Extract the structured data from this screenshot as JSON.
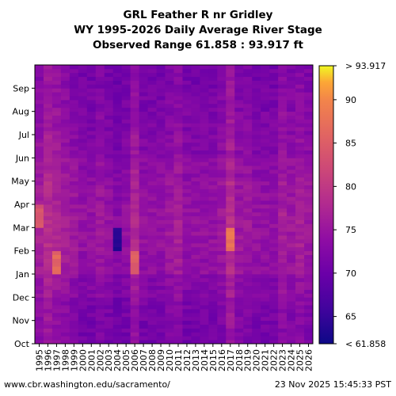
{
  "chart_data": {
    "type": "heatmap",
    "title": "GRL Feather R nr Gridley",
    "subtitle": "WY 1995-2026 Daily Average River Stage",
    "range_label": "Observed Range 61.858 : 93.917 ft",
    "x": [
      "1995",
      "1996",
      "1997",
      "1998",
      "1999",
      "2000",
      "2001",
      "2002",
      "2003",
      "2004",
      "2005",
      "2006",
      "2007",
      "2008",
      "2009",
      "2010",
      "2011",
      "2012",
      "2013",
      "2014",
      "2015",
      "2016",
      "2017",
      "2018",
      "2019",
      "2020",
      "2021",
      "2022",
      "2023",
      "2024",
      "2025",
      "2026"
    ],
    "y_ticks": [
      "Oct",
      "Nov",
      "Dec",
      "Jan",
      "Feb",
      "Mar",
      "Apr",
      "May",
      "Jun",
      "Jul",
      "Aug",
      "Sep"
    ],
    "colorbar_ticks": [
      "65",
      "70",
      "75",
      "80",
      "85",
      "90"
    ],
    "colorbar_top": "> 93.917",
    "colorbar_bottom": "< 61.858",
    "vmin": 61.858,
    "vmax": 93.917,
    "colormap": "plasma",
    "typical_stage_by_year": [
      74,
      76,
      75,
      74,
      73,
      72,
      72,
      73,
      72,
      71,
      72,
      75,
      72,
      72,
      72,
      73,
      74,
      72,
      72,
      72,
      72,
      73,
      76,
      73,
      73,
      72,
      72,
      72,
      74,
      73,
      74,
      73
    ],
    "notable_high_stage": [
      {
        "year": "1997",
        "month": "Jan",
        "value": 88
      },
      {
        "year": "2017",
        "month": "Feb",
        "value": 89
      },
      {
        "year": "2006",
        "month": "Jan",
        "value": 86
      },
      {
        "year": "1995",
        "month": "Mar",
        "value": 85
      }
    ],
    "notable_low_stage": [
      {
        "year": "2004",
        "month": "Feb",
        "value": 63
      }
    ]
  },
  "footer": {
    "left": "www.cbr.washington.edu/sacramento/",
    "right": "23 Nov 2025 15:45:33 PST"
  }
}
